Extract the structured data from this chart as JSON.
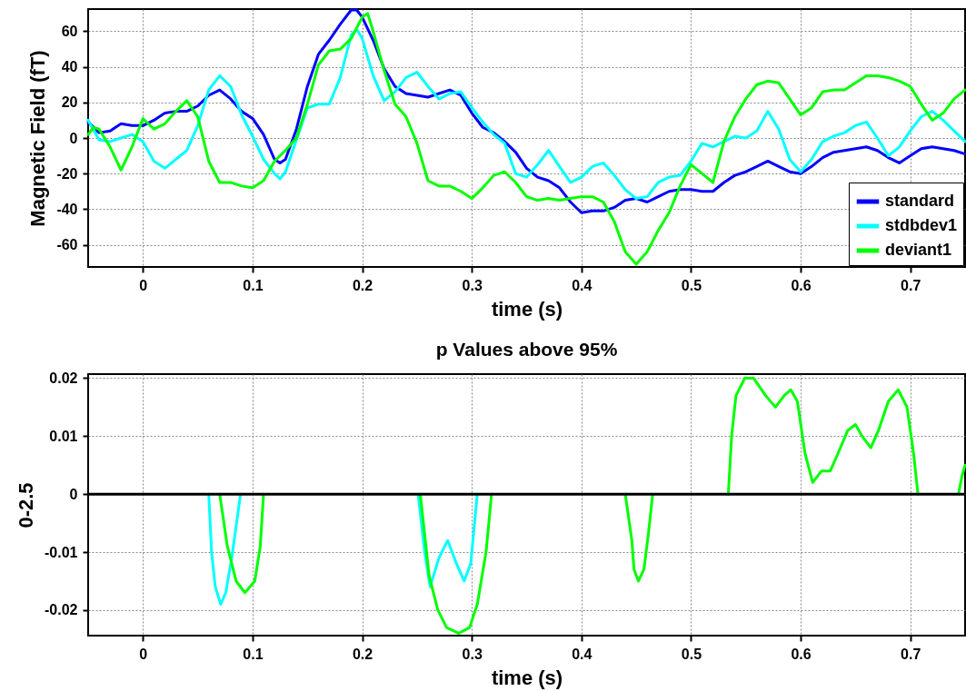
{
  "chart_data": [
    {
      "type": "line",
      "xlabel": "time (s)",
      "ylabel": "Magnetic Field (fT)",
      "xlim": [
        -0.05,
        0.75
      ],
      "ylim": [
        -72.5,
        72.5
      ],
      "xticks": [
        0,
        0.1,
        0.2,
        0.3,
        0.4,
        0.5,
        0.6,
        0.7
      ],
      "yticks": [
        -60,
        -40,
        -20,
        0,
        20,
        40,
        60
      ],
      "grid": true,
      "legend": "bottom right",
      "line_style": "solid",
      "series": [
        {
          "name": "standard",
          "color": "#0000ff",
          "x": [
            -0.05,
            -0.04,
            -0.03,
            -0.02,
            -0.01,
            0,
            0.01,
            0.02,
            0.03,
            0.04,
            0.05,
            0.06,
            0.07,
            0.08,
            0.09,
            0.1,
            0.11,
            0.12,
            0.125,
            0.13,
            0.14,
            0.15,
            0.16,
            0.17,
            0.18,
            0.19,
            0.195,
            0.2,
            0.21,
            0.22,
            0.23,
            0.24,
            0.25,
            0.26,
            0.27,
            0.28,
            0.29,
            0.3,
            0.31,
            0.32,
            0.33,
            0.34,
            0.35,
            0.36,
            0.37,
            0.38,
            0.39,
            0.4,
            0.41,
            0.42,
            0.43,
            0.44,
            0.45,
            0.46,
            0.47,
            0.48,
            0.49,
            0.5,
            0.51,
            0.52,
            0.53,
            0.54,
            0.55,
            0.56,
            0.57,
            0.58,
            0.59,
            0.6,
            0.61,
            0.62,
            0.63,
            0.64,
            0.65,
            0.66,
            0.67,
            0.68,
            0.69,
            0.7,
            0.71,
            0.72,
            0.73,
            0.74,
            0.75
          ],
          "values": [
            9,
            3,
            4,
            8,
            7,
            7,
            10,
            14,
            15,
            15,
            18,
            24,
            27,
            22,
            15,
            11,
            2,
            -12,
            -14,
            -12,
            5,
            29,
            47,
            55,
            64,
            72,
            72,
            68,
            55,
            39,
            29,
            25,
            24,
            23,
            25,
            27,
            24,
            14,
            6,
            3,
            -2,
            -8,
            -17,
            -22,
            -24,
            -28,
            -36,
            -42,
            -41,
            -41,
            -39,
            -35,
            -34,
            -36,
            -33,
            -30,
            -29,
            -29,
            -30,
            -30,
            -25,
            -21,
            -19,
            -16,
            -13,
            -16,
            -19,
            -20,
            -16,
            -11,
            -8,
            -7,
            -6,
            -5,
            -7,
            -11,
            -14,
            -10,
            -6,
            -5,
            -6,
            -7,
            -9
          ]
        },
        {
          "name": "stdbdev1",
          "color": "#00ffff",
          "x": [
            -0.05,
            -0.04,
            -0.03,
            -0.02,
            -0.01,
            0,
            0.01,
            0.02,
            0.03,
            0.04,
            0.05,
            0.06,
            0.07,
            0.08,
            0.09,
            0.1,
            0.11,
            0.12,
            0.125,
            0.13,
            0.14,
            0.15,
            0.16,
            0.17,
            0.18,
            0.19,
            0.195,
            0.2,
            0.21,
            0.22,
            0.23,
            0.24,
            0.25,
            0.26,
            0.27,
            0.28,
            0.29,
            0.3,
            0.31,
            0.32,
            0.33,
            0.34,
            0.35,
            0.36,
            0.37,
            0.38,
            0.39,
            0.4,
            0.41,
            0.42,
            0.43,
            0.44,
            0.45,
            0.46,
            0.47,
            0.48,
            0.49,
            0.5,
            0.51,
            0.52,
            0.53,
            0.54,
            0.55,
            0.56,
            0.57,
            0.58,
            0.59,
            0.6,
            0.61,
            0.62,
            0.63,
            0.64,
            0.65,
            0.66,
            0.67,
            0.68,
            0.69,
            0.7,
            0.71,
            0.72,
            0.73,
            0.74,
            0.75
          ],
          "values": [
            10,
            -1,
            -2,
            0,
            2,
            -2,
            -13,
            -17,
            -12,
            -7,
            7,
            27,
            35,
            29,
            13,
            1,
            -12,
            -20,
            -23,
            -19,
            -1,
            17,
            19,
            19,
            34,
            58,
            61,
            56,
            35,
            21,
            26,
            34,
            37,
            29,
            22,
            25,
            26,
            17,
            9,
            2,
            -3,
            -20,
            -22,
            -15,
            -7,
            -16,
            -25,
            -22,
            -16,
            -14,
            -21,
            -29,
            -34,
            -33,
            -25,
            -22,
            -21,
            -13,
            -3,
            -5,
            -2,
            1,
            0,
            4,
            15,
            5,
            -12,
            -19,
            -12,
            -2,
            1,
            3,
            7,
            9,
            0,
            -10,
            -5,
            4,
            12,
            15,
            10,
            4,
            -2
          ]
        },
        {
          "name": "deviant1",
          "color": "#00ff00",
          "x": [
            -0.05,
            -0.045,
            -0.04,
            -0.03,
            -0.02,
            -0.01,
            0,
            0.01,
            0.02,
            0.03,
            0.04,
            0.05,
            0.06,
            0.07,
            0.08,
            0.09,
            0.1,
            0.11,
            0.12,
            0.13,
            0.14,
            0.15,
            0.16,
            0.17,
            0.18,
            0.19,
            0.2,
            0.205,
            0.21,
            0.22,
            0.23,
            0.24,
            0.25,
            0.26,
            0.27,
            0.28,
            0.29,
            0.3,
            0.31,
            0.32,
            0.33,
            0.34,
            0.35,
            0.36,
            0.37,
            0.38,
            0.39,
            0.4,
            0.41,
            0.42,
            0.43,
            0.44,
            0.45,
            0.46,
            0.47,
            0.48,
            0.49,
            0.5,
            0.51,
            0.52,
            0.53,
            0.54,
            0.55,
            0.56,
            0.57,
            0.58,
            0.59,
            0.6,
            0.61,
            0.62,
            0.63,
            0.64,
            0.65,
            0.66,
            0.67,
            0.68,
            0.69,
            0.7,
            0.71,
            0.72,
            0.73,
            0.74,
            0.75
          ],
          "values": [
            2,
            6,
            5,
            -5,
            -18,
            -5,
            11,
            5,
            8,
            15,
            21,
            12,
            -13,
            -25,
            -25,
            -27,
            -28,
            -24,
            -13,
            -7,
            0,
            19,
            41,
            49,
            50,
            56,
            68,
            70,
            60,
            38,
            19,
            12,
            -3,
            -24,
            -27,
            -27,
            -30,
            -34,
            -28,
            -21,
            -19,
            -25,
            -33,
            -35,
            -34,
            -35,
            -34,
            -33,
            -33,
            -36,
            -47,
            -64,
            -71,
            -64,
            -52,
            -42,
            -27,
            -15,
            -20,
            -25,
            -2,
            12,
            22,
            30,
            32,
            31,
            22,
            13,
            17,
            26,
            27,
            27,
            31,
            35,
            35,
            34,
            32,
            29,
            19,
            10,
            14,
            22,
            27
          ]
        }
      ]
    },
    {
      "type": "line",
      "title": "p Values above 95%",
      "xlabel": "time (s)",
      "ylabel": "0-2.5",
      "xlim": [
        -0.05,
        0.75
      ],
      "ylim": [
        -0.0244,
        0.0207
      ],
      "xticks": [
        0,
        0.1,
        0.2,
        0.3,
        0.4,
        0.5,
        0.6,
        0.7
      ],
      "yticks": [
        -0.02,
        -0.01,
        0,
        0.01,
        0.02
      ],
      "grid": true,
      "line_style": "solid",
      "ref_lines": [
        {
          "axis": "y",
          "value": 0,
          "color": "#000000"
        }
      ],
      "series": [
        {
          "color": "#00ffff",
          "x": [
            0.06,
            0.0626,
            0.066,
            0.071,
            0.0755,
            0.081,
            0.089,
            0.17,
            0.251,
            0.257,
            0.262,
            0.27,
            0.278,
            0.286,
            0.293,
            0.299,
            0.305
          ],
          "values": [
            0,
            -0.01,
            -0.016,
            -0.019,
            -0.017,
            -0.011,
            0,
            null,
            0,
            -0.01,
            -0.016,
            -0.011,
            -0.008,
            -0.012,
            -0.015,
            -0.012,
            0
          ]
        },
        {
          "color": "#00ff00",
          "x": [
            0.07,
            0.077,
            0.085,
            0.093,
            0.102,
            0.107,
            0.11,
            0.18,
            0.253,
            0.261,
            0.269,
            0.277,
            0.288,
            0.298,
            0.305,
            0.313,
            0.318,
            0.38,
            0.44,
            0.446,
            0.448,
            0.452,
            0.457,
            0.461,
            0.465,
            0.5,
            0.534,
            0.537,
            0.541,
            0.549,
            0.557,
            0.568,
            0.577,
            0.585,
            0.591,
            0.597,
            0.604,
            0.611,
            0.619,
            0.627,
            0.634,
            0.643,
            0.65,
            0.656,
            0.664,
            0.671,
            0.68,
            0.689,
            0.697,
            0.703,
            0.707,
            0.72,
            0.744,
            0.747,
            0.75
          ],
          "values": [
            0,
            -0.009,
            -0.015,
            -0.017,
            -0.015,
            -0.009,
            0,
            null,
            0,
            -0.014,
            -0.02,
            -0.023,
            -0.024,
            -0.023,
            -0.019,
            -0.01,
            0,
            null,
            0,
            -0.008,
            -0.013,
            -0.015,
            -0.013,
            -0.007,
            0,
            null,
            0,
            0.01,
            0.017,
            0.02,
            0.02,
            0.017,
            0.015,
            0.017,
            0.018,
            0.016,
            0.007,
            0.002,
            0.004,
            0.004,
            0.007,
            0.011,
            0.012,
            0.01,
            0.008,
            0.011,
            0.016,
            0.018,
            0.015,
            0.007,
            0,
            null,
            0,
            0.003,
            0.005
          ]
        }
      ]
    }
  ]
}
